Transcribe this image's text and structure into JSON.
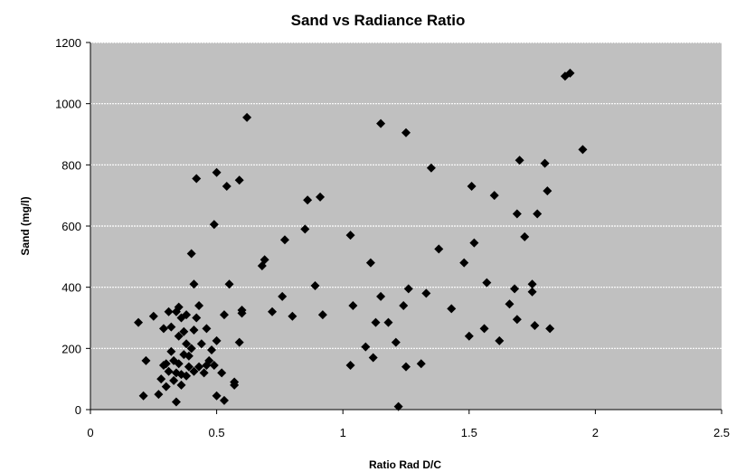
{
  "chart_data": {
    "type": "scatter",
    "title": "Sand  vs  Radiance Ratio",
    "xlabel": "Ratio Rad D/C",
    "ylabel": "Sand  (mg/l)",
    "xlim": [
      0,
      2.5
    ],
    "ylim": [
      0,
      1200
    ],
    "x_ticks": [
      "0",
      "0.5",
      "1",
      "1.5",
      "2",
      "2.5"
    ],
    "y_ticks": [
      "0",
      "200",
      "400",
      "600",
      "800",
      "1000",
      "1200"
    ],
    "x_tick_values": [
      0,
      0.5,
      1,
      1.5,
      2,
      2.5
    ],
    "y_tick_values": [
      0,
      200,
      400,
      600,
      800,
      1000,
      1200
    ],
    "grid": "horizontal",
    "legend": "none",
    "colors": {
      "plot_background": "#c0c0c0",
      "marker": "#000000",
      "gridline": "#ffffff"
    },
    "points": [
      {
        "x": 0.19,
        "y": 285
      },
      {
        "x": 0.21,
        "y": 45
      },
      {
        "x": 0.22,
        "y": 160
      },
      {
        "x": 0.25,
        "y": 305
      },
      {
        "x": 0.27,
        "y": 50
      },
      {
        "x": 0.28,
        "y": 100
      },
      {
        "x": 0.29,
        "y": 145
      },
      {
        "x": 0.29,
        "y": 265
      },
      {
        "x": 0.3,
        "y": 150
      },
      {
        "x": 0.3,
        "y": 75
      },
      {
        "x": 0.31,
        "y": 320
      },
      {
        "x": 0.31,
        "y": 125
      },
      {
        "x": 0.32,
        "y": 270
      },
      {
        "x": 0.32,
        "y": 190
      },
      {
        "x": 0.33,
        "y": 160
      },
      {
        "x": 0.33,
        "y": 95
      },
      {
        "x": 0.34,
        "y": 320
      },
      {
        "x": 0.34,
        "y": 120
      },
      {
        "x": 0.34,
        "y": 25
      },
      {
        "x": 0.35,
        "y": 335
      },
      {
        "x": 0.35,
        "y": 240
      },
      {
        "x": 0.35,
        "y": 150
      },
      {
        "x": 0.36,
        "y": 300
      },
      {
        "x": 0.36,
        "y": 80
      },
      {
        "x": 0.36,
        "y": 115
      },
      {
        "x": 0.37,
        "y": 255
      },
      {
        "x": 0.37,
        "y": 180
      },
      {
        "x": 0.38,
        "y": 310
      },
      {
        "x": 0.38,
        "y": 110
      },
      {
        "x": 0.38,
        "y": 215
      },
      {
        "x": 0.39,
        "y": 140
      },
      {
        "x": 0.39,
        "y": 175
      },
      {
        "x": 0.4,
        "y": 200
      },
      {
        "x": 0.4,
        "y": 510
      },
      {
        "x": 0.41,
        "y": 410
      },
      {
        "x": 0.41,
        "y": 125
      },
      {
        "x": 0.41,
        "y": 260
      },
      {
        "x": 0.42,
        "y": 755
      },
      {
        "x": 0.42,
        "y": 300
      },
      {
        "x": 0.43,
        "y": 340
      },
      {
        "x": 0.43,
        "y": 140
      },
      {
        "x": 0.44,
        "y": 215
      },
      {
        "x": 0.45,
        "y": 120
      },
      {
        "x": 0.46,
        "y": 265
      },
      {
        "x": 0.46,
        "y": 145
      },
      {
        "x": 0.47,
        "y": 160
      },
      {
        "x": 0.48,
        "y": 195
      },
      {
        "x": 0.49,
        "y": 145
      },
      {
        "x": 0.49,
        "y": 605
      },
      {
        "x": 0.5,
        "y": 775
      },
      {
        "x": 0.5,
        "y": 225
      },
      {
        "x": 0.5,
        "y": 45
      },
      {
        "x": 0.52,
        "y": 120
      },
      {
        "x": 0.53,
        "y": 310
      },
      {
        "x": 0.53,
        "y": 30
      },
      {
        "x": 0.54,
        "y": 730
      },
      {
        "x": 0.55,
        "y": 410
      },
      {
        "x": 0.57,
        "y": 90
      },
      {
        "x": 0.57,
        "y": 80
      },
      {
        "x": 0.59,
        "y": 750
      },
      {
        "x": 0.59,
        "y": 220
      },
      {
        "x": 0.6,
        "y": 315
      },
      {
        "x": 0.6,
        "y": 325
      },
      {
        "x": 0.62,
        "y": 955
      },
      {
        "x": 0.68,
        "y": 470
      },
      {
        "x": 0.69,
        "y": 490
      },
      {
        "x": 0.72,
        "y": 320
      },
      {
        "x": 0.76,
        "y": 370
      },
      {
        "x": 0.77,
        "y": 555
      },
      {
        "x": 0.8,
        "y": 305
      },
      {
        "x": 0.85,
        "y": 590
      },
      {
        "x": 0.86,
        "y": 685
      },
      {
        "x": 0.89,
        "y": 405
      },
      {
        "x": 0.91,
        "y": 695
      },
      {
        "x": 0.92,
        "y": 310
      },
      {
        "x": 1.03,
        "y": 570
      },
      {
        "x": 1.03,
        "y": 145
      },
      {
        "x": 1.04,
        "y": 340
      },
      {
        "x": 1.09,
        "y": 205
      },
      {
        "x": 1.11,
        "y": 480
      },
      {
        "x": 1.12,
        "y": 170
      },
      {
        "x": 1.13,
        "y": 285
      },
      {
        "x": 1.15,
        "y": 935
      },
      {
        "x": 1.15,
        "y": 370
      },
      {
        "x": 1.18,
        "y": 285
      },
      {
        "x": 1.21,
        "y": 220
      },
      {
        "x": 1.22,
        "y": 10
      },
      {
        "x": 1.24,
        "y": 340
      },
      {
        "x": 1.25,
        "y": 140
      },
      {
        "x": 1.25,
        "y": 905
      },
      {
        "x": 1.26,
        "y": 395
      },
      {
        "x": 1.31,
        "y": 150
      },
      {
        "x": 1.33,
        "y": 380
      },
      {
        "x": 1.35,
        "y": 790
      },
      {
        "x": 1.38,
        "y": 525
      },
      {
        "x": 1.43,
        "y": 330
      },
      {
        "x": 1.48,
        "y": 480
      },
      {
        "x": 1.5,
        "y": 240
      },
      {
        "x": 1.51,
        "y": 730
      },
      {
        "x": 1.52,
        "y": 545
      },
      {
        "x": 1.56,
        "y": 265
      },
      {
        "x": 1.57,
        "y": 415
      },
      {
        "x": 1.6,
        "y": 700
      },
      {
        "x": 1.62,
        "y": 225
      },
      {
        "x": 1.66,
        "y": 345
      },
      {
        "x": 1.68,
        "y": 395
      },
      {
        "x": 1.69,
        "y": 640
      },
      {
        "x": 1.69,
        "y": 295
      },
      {
        "x": 1.7,
        "y": 815
      },
      {
        "x": 1.72,
        "y": 565
      },
      {
        "x": 1.75,
        "y": 410
      },
      {
        "x": 1.75,
        "y": 385
      },
      {
        "x": 1.76,
        "y": 275
      },
      {
        "x": 1.77,
        "y": 640
      },
      {
        "x": 1.8,
        "y": 805
      },
      {
        "x": 1.81,
        "y": 715
      },
      {
        "x": 1.82,
        "y": 265
      },
      {
        "x": 1.88,
        "y": 1090
      },
      {
        "x": 1.9,
        "y": 1100
      },
      {
        "x": 1.95,
        "y": 850
      }
    ]
  }
}
